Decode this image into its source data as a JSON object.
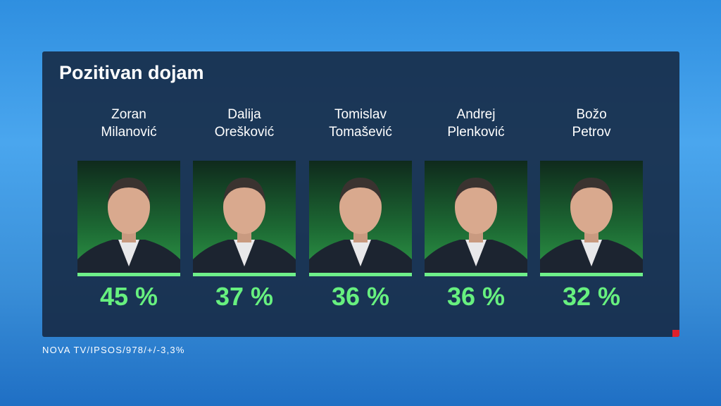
{
  "title": "Pozitivan dojam",
  "candidates": [
    {
      "first_name": "Zoran",
      "last_name": "Milanović",
      "result": "45 %"
    },
    {
      "first_name": "Dalija",
      "last_name": "Orešković",
      "result": "37 %"
    },
    {
      "first_name": "Tomislav",
      "last_name": "Tomašević",
      "result": "36 %"
    },
    {
      "first_name": "Andrej",
      "last_name": "Plenković",
      "result": "36 %"
    },
    {
      "first_name": "Božo",
      "last_name": "Petrov",
      "result": "32 %"
    }
  ],
  "source": "NOVA TV/IPSOS/978/+/-3,3%"
}
